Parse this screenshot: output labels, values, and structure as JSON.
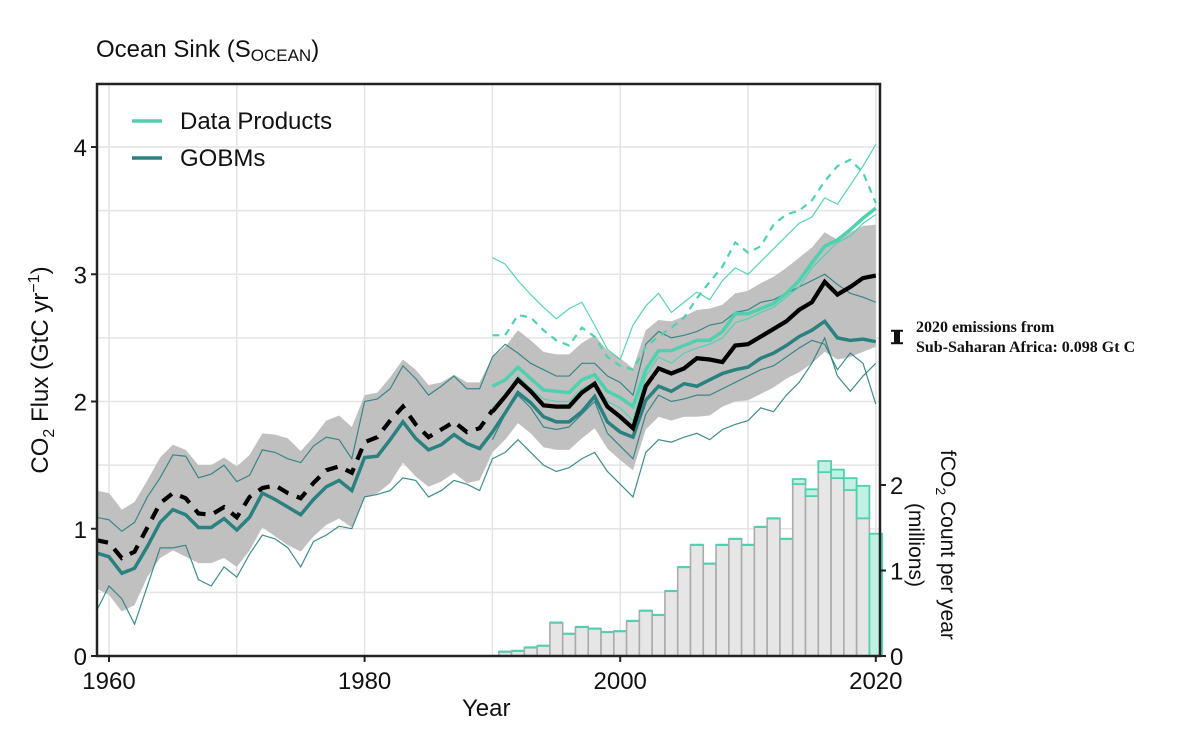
{
  "chart_data": {
    "type": "line",
    "title": "Ocean Sink (S",
    "title_sub": "OCEAN",
    "title_end": ")",
    "xlabel": "Year",
    "ylabel": "CO",
    "ylabel_sub": "2",
    "ylabel_rest": " Flux (GtC  yr",
    "ylabel_sup": "−1",
    "ylabel_end": ")",
    "y2label_line1_pre": "fCO",
    "y2label_line1_sub": "2",
    "y2label_line1_post": " Count per year",
    "y2label_line2": "(millions)",
    "xlim": [
      1959,
      2021
    ],
    "ylim": [
      0,
      4.5
    ],
    "y2lim": [
      0,
      6.7
    ],
    "xticks": [
      1960,
      1980,
      2000,
      2020
    ],
    "yticks": [
      0,
      1,
      2,
      3,
      4
    ],
    "y2ticks": [
      0,
      1,
      2
    ],
    "grid": true,
    "legend": {
      "placement": "top-left",
      "entries": [
        {
          "label": "Data Products",
          "color": "#4fd1b0"
        },
        {
          "label": "GOBMs",
          "color": "#2b8080"
        }
      ]
    },
    "annotation": {
      "line1": "2020 emissions from",
      "line2": "Sub-Saharan Africa: 0.098 Gt C",
      "year": 2020,
      "value_gtc": 0.098
    },
    "colors": {
      "data_products": "#4fd1b0",
      "gobms": "#2b8080",
      "mean": "#000000",
      "band": "#bdbdbd",
      "bar_fill": "#e6e6e6",
      "bar_edge": "#ababab",
      "bar_dp_fill": "#c2f0e2"
    },
    "uncertainty_band": {
      "name": "GOBM spread",
      "x": [
        1959,
        1960,
        1961,
        1962,
        1963,
        1964,
        1965,
        1966,
        1967,
        1968,
        1969,
        1970,
        1971,
        1972,
        1973,
        1974,
        1975,
        1976,
        1977,
        1978,
        1979,
        1980,
        1981,
        1982,
        1983,
        1984,
        1985,
        1986,
        1987,
        1988,
        1989,
        1990,
        1991,
        1992,
        1993,
        1994,
        1995,
        1996,
        1997,
        1998,
        1999,
        2000,
        2001,
        2002,
        2003,
        2004,
        2005,
        2006,
        2007,
        2008,
        2009,
        2010,
        2011,
        2012,
        2013,
        2014,
        2015,
        2016,
        2017,
        2018,
        2019,
        2020
      ],
      "upper": [
        1.3,
        1.28,
        1.15,
        1.21,
        1.38,
        1.56,
        1.66,
        1.62,
        1.5,
        1.5,
        1.56,
        1.49,
        1.58,
        1.75,
        1.74,
        1.71,
        1.61,
        1.72,
        1.85,
        1.89,
        1.8,
        2.05,
        2.07,
        2.19,
        2.33,
        2.25,
        2.13,
        2.15,
        2.21,
        2.15,
        2.15,
        2.35,
        2.43,
        2.56,
        2.48,
        2.39,
        2.37,
        2.37,
        2.46,
        2.52,
        2.4,
        2.34,
        2.26,
        2.56,
        2.64,
        2.63,
        2.67,
        2.72,
        2.73,
        2.76,
        2.85,
        2.87,
        2.93,
        2.98,
        3.05,
        3.13,
        3.21,
        3.33,
        3.27,
        3.33,
        3.38,
        3.39
      ],
      "lower": [
        0.53,
        0.48,
        0.35,
        0.4,
        0.62,
        0.77,
        0.83,
        0.78,
        0.73,
        0.73,
        0.77,
        0.7,
        0.83,
        1.01,
        0.94,
        0.87,
        0.82,
        0.94,
        1.03,
        1.08,
        1.01,
        1.25,
        1.28,
        1.36,
        1.52,
        1.41,
        1.33,
        1.37,
        1.44,
        1.36,
        1.38,
        1.6,
        1.7,
        1.83,
        1.75,
        1.64,
        1.62,
        1.62,
        1.71,
        1.79,
        1.63,
        1.54,
        1.46,
        1.78,
        1.88,
        1.85,
        1.88,
        1.88,
        1.89,
        1.96,
        2.0,
        2.01,
        2.06,
        2.11,
        2.18,
        2.23,
        2.3,
        2.39,
        2.33,
        2.35,
        2.39,
        2.43
      ]
    },
    "series": [
      {
        "name": "GCB estimate (dashed pre-1990)",
        "style": "black-dashed",
        "x": [
          1959,
          1960,
          1961,
          1962,
          1963,
          1964,
          1965,
          1966,
          1967,
          1968,
          1969,
          1970,
          1971,
          1972,
          1973,
          1974,
          1975,
          1976,
          1977,
          1978,
          1979,
          1980,
          1981,
          1982,
          1983,
          1984,
          1985,
          1986,
          1987,
          1988,
          1989,
          1990
        ],
        "values": [
          0.91,
          0.89,
          0.77,
          0.82,
          1.01,
          1.2,
          1.28,
          1.24,
          1.12,
          1.11,
          1.17,
          1.09,
          1.25,
          1.32,
          1.34,
          1.28,
          1.24,
          1.36,
          1.46,
          1.49,
          1.44,
          1.68,
          1.72,
          1.85,
          1.96,
          1.82,
          1.72,
          1.78,
          1.84,
          1.76,
          1.79,
          1.93
        ]
      },
      {
        "name": "GCB estimate (solid 1990-2020)",
        "style": "black-solid",
        "x": [
          1990,
          1991,
          1992,
          1993,
          1994,
          1995,
          1996,
          1997,
          1998,
          1999,
          2000,
          2001,
          2002,
          2003,
          2004,
          2005,
          2006,
          2007,
          2008,
          2009,
          2010,
          2011,
          2012,
          2013,
          2014,
          2015,
          2016,
          2017,
          2018,
          2019,
          2020
        ],
        "values": [
          1.92,
          2.04,
          2.17,
          2.08,
          1.97,
          1.96,
          1.96,
          2.07,
          2.14,
          1.96,
          1.88,
          1.79,
          2.12,
          2.26,
          2.22,
          2.26,
          2.34,
          2.33,
          2.31,
          2.44,
          2.45,
          2.51,
          2.57,
          2.63,
          2.72,
          2.78,
          2.94,
          2.84,
          2.9,
          2.97,
          2.99
        ]
      },
      {
        "name": "GOBMs mean",
        "style": "gobm-thick",
        "x": [
          1959,
          1960,
          1961,
          1962,
          1963,
          1964,
          1965,
          1966,
          1967,
          1968,
          1969,
          1970,
          1971,
          1972,
          1973,
          1974,
          1975,
          1976,
          1977,
          1978,
          1979,
          1980,
          1981,
          1982,
          1983,
          1984,
          1985,
          1986,
          1987,
          1988,
          1989,
          1990,
          1991,
          1992,
          1993,
          1994,
          1995,
          1996,
          1997,
          1998,
          1999,
          2000,
          2001,
          2002,
          2003,
          2004,
          2005,
          2006,
          2007,
          2008,
          2009,
          2010,
          2011,
          2012,
          2013,
          2014,
          2015,
          2016,
          2017,
          2018,
          2019,
          2020
        ],
        "values": [
          0.81,
          0.78,
          0.65,
          0.69,
          0.86,
          1.05,
          1.15,
          1.11,
          1.01,
          1.01,
          1.08,
          0.99,
          1.09,
          1.28,
          1.23,
          1.17,
          1.11,
          1.23,
          1.33,
          1.38,
          1.3,
          1.56,
          1.57,
          1.7,
          1.84,
          1.71,
          1.62,
          1.66,
          1.74,
          1.67,
          1.63,
          1.76,
          1.91,
          2.07,
          1.99,
          1.88,
          1.84,
          1.84,
          1.92,
          2.04,
          1.84,
          1.76,
          1.72,
          2.01,
          2.12,
          2.08,
          2.14,
          2.12,
          2.17,
          2.22,
          2.25,
          2.27,
          2.34,
          2.38,
          2.44,
          2.51,
          2.56,
          2.63,
          2.5,
          2.48,
          2.49,
          2.47
        ]
      },
      {
        "name": "Data Products mean",
        "style": "dp-thick",
        "x": [
          1990,
          1991,
          1992,
          1993,
          1994,
          1995,
          1996,
          1997,
          1998,
          1999,
          2000,
          2001,
          2002,
          2003,
          2004,
          2005,
          2006,
          2007,
          2008,
          2009,
          2010,
          2011,
          2012,
          2013,
          2014,
          2015,
          2016,
          2017,
          2018,
          2019,
          2020
        ],
        "values": [
          2.12,
          2.17,
          2.27,
          2.18,
          2.09,
          2.08,
          2.07,
          2.17,
          2.21,
          2.08,
          2.03,
          1.96,
          2.25,
          2.4,
          2.4,
          2.44,
          2.48,
          2.48,
          2.55,
          2.69,
          2.69,
          2.73,
          2.77,
          2.85,
          2.95,
          3.09,
          3.22,
          3.27,
          3.35,
          3.44,
          3.52
        ]
      },
      {
        "name": "Data Product (dashed)",
        "style": "dp-dashed",
        "x": [
          1990,
          1991,
          1992,
          1993,
          1994,
          1995,
          1996,
          1997,
          1998,
          1999,
          2000,
          2001,
          2002,
          2003,
          2004,
          2005,
          2006,
          2007,
          2008,
          2009,
          2010,
          2011,
          2012,
          2013,
          2014,
          2015,
          2016,
          2017,
          2018,
          2019,
          2020
        ],
        "values": [
          2.52,
          2.52,
          2.68,
          2.66,
          2.56,
          2.48,
          2.44,
          2.58,
          2.51,
          2.35,
          2.28,
          2.25,
          2.43,
          2.51,
          2.58,
          2.66,
          2.81,
          2.94,
          3.06,
          3.25,
          3.17,
          3.22,
          3.39,
          3.47,
          3.5,
          3.58,
          3.73,
          3.85,
          3.9,
          3.8,
          3.56
        ]
      },
      {
        "name": "Data Product member A",
        "style": "dp-thin",
        "x": [
          1990,
          1991,
          1992,
          1993,
          1994,
          1995,
          1996,
          1997,
          1998,
          1999,
          2000,
          2001,
          2002,
          2003,
          2004,
          2005,
          2006,
          2007,
          2008,
          2009,
          2010,
          2011,
          2012,
          2013,
          2014,
          2015,
          2016,
          2017,
          2018,
          2019,
          2020
        ],
        "values": [
          3.13,
          3.08,
          2.95,
          2.84,
          2.74,
          2.65,
          2.73,
          2.78,
          2.6,
          2.41,
          2.33,
          2.6,
          2.75,
          2.85,
          2.7,
          2.78,
          2.86,
          2.8,
          2.95,
          3.05,
          3.0,
          3.1,
          3.2,
          3.3,
          3.4,
          3.45,
          3.6,
          3.55,
          3.7,
          3.85,
          4.02
        ]
      },
      {
        "name": "Data Product member B",
        "style": "dp-thin",
        "x": [
          1990,
          1991,
          1992,
          1993,
          1994,
          1995,
          1996,
          1997,
          1998,
          1999,
          2000,
          2001,
          2002,
          2003,
          2004,
          2005,
          2006,
          2007,
          2008,
          2009,
          2010,
          2011,
          2012,
          2013,
          2014,
          2015,
          2016,
          2017,
          2018,
          2019,
          2020
        ],
        "values": [
          1.95,
          2.05,
          2.2,
          2.1,
          2.02,
          2.0,
          2.0,
          2.1,
          2.15,
          2.0,
          1.95,
          1.85,
          2.2,
          2.35,
          2.3,
          2.38,
          2.42,
          2.45,
          2.5,
          2.62,
          2.65,
          2.7,
          2.74,
          2.82,
          2.9,
          3.05,
          3.15,
          3.25,
          3.3,
          3.4,
          3.47
        ]
      },
      {
        "name": "GOBM member A",
        "style": "gobm-thin",
        "x": [
          1959,
          1960,
          1961,
          1962,
          1963,
          1964,
          1965,
          1966,
          1967,
          1968,
          1969,
          1970,
          1971,
          1972,
          1973,
          1974,
          1975,
          1976,
          1977,
          1978,
          1979,
          1980,
          1981,
          1982,
          1983,
          1984,
          1985,
          1986,
          1987,
          1988,
          1989,
          1990,
          1991,
          1992,
          1993,
          1994,
          1995,
          1996,
          1997,
          1998,
          1999,
          2000,
          2001,
          2002,
          2003,
          2004,
          2005,
          2006,
          2007,
          2008,
          2009,
          2010,
          2011,
          2012,
          2013,
          2014,
          2015,
          2016,
          2017,
          2018,
          2019,
          2020
        ],
        "values": [
          1.09,
          1.07,
          0.98,
          1.05,
          1.25,
          1.4,
          1.58,
          1.57,
          1.4,
          1.43,
          1.5,
          1.37,
          1.42,
          1.62,
          1.6,
          1.55,
          1.52,
          1.65,
          1.72,
          1.7,
          1.55,
          2.0,
          2.02,
          2.1,
          2.28,
          2.18,
          2.05,
          2.12,
          2.2,
          2.1,
          2.1,
          2.35,
          2.45,
          2.38,
          2.3,
          2.25,
          2.2,
          2.2,
          2.3,
          2.3,
          2.2,
          2.15,
          2.05,
          2.45,
          2.55,
          2.5,
          2.52,
          2.55,
          2.6,
          2.62,
          2.7,
          2.72,
          2.78,
          2.8,
          2.85,
          2.9,
          2.95,
          3.0,
          2.92,
          2.85,
          2.82,
          2.78
        ]
      },
      {
        "name": "GOBM member B",
        "style": "gobm-thin",
        "x": [
          1959,
          1960,
          1961,
          1962,
          1963,
          1964,
          1965,
          1966,
          1967,
          1968,
          1969,
          1970,
          1971,
          1972,
          1973,
          1974,
          1975,
          1976,
          1977,
          1978,
          1979,
          1980,
          1981,
          1982,
          1983,
          1984,
          1985,
          1986,
          1987,
          1988,
          1989,
          1990,
          1991,
          1992,
          1993,
          1994,
          1995,
          1996,
          1997,
          1998,
          1999,
          2000,
          2001,
          2002,
          2003,
          2004,
          2005,
          2006,
          2007,
          2008,
          2009,
          2010,
          2011,
          2012,
          2013,
          2014,
          2015,
          2016,
          2017,
          2018,
          2019,
          2020
        ],
        "values": [
          0.35,
          0.55,
          0.45,
          0.25,
          0.55,
          0.85,
          0.85,
          0.87,
          0.6,
          0.55,
          0.7,
          0.62,
          0.8,
          0.95,
          0.92,
          0.85,
          0.7,
          0.9,
          0.95,
          1.02,
          1.0,
          1.25,
          1.27,
          1.3,
          1.4,
          1.38,
          1.25,
          1.3,
          1.38,
          1.35,
          1.3,
          1.55,
          1.6,
          1.7,
          1.6,
          1.5,
          1.45,
          1.48,
          1.55,
          1.6,
          1.45,
          1.35,
          1.25,
          1.6,
          1.7,
          1.68,
          1.72,
          1.75,
          1.7,
          1.78,
          1.82,
          1.85,
          1.95,
          1.92,
          2.05,
          2.15,
          2.3,
          2.5,
          2.2,
          2.08,
          2.2,
          2.3
        ]
      },
      {
        "name": "GOBM member C",
        "style": "gobm-thin",
        "x": [
          1990,
          1991,
          1992,
          1993,
          1994,
          1995,
          1996,
          1997,
          1998,
          1999,
          2000,
          2001,
          2002,
          2003,
          2004,
          2005,
          2006,
          2007,
          2008,
          2009,
          2010,
          2011,
          2012,
          2013,
          2014,
          2015,
          2016,
          2017,
          2018,
          2019,
          2020
        ],
        "values": [
          1.7,
          1.9,
          2.05,
          1.95,
          1.8,
          1.78,
          1.8,
          1.9,
          2.0,
          1.75,
          1.65,
          1.55,
          1.9,
          2.05,
          2.0,
          2.02,
          2.05,
          2.05,
          2.1,
          2.15,
          2.2,
          2.25,
          2.28,
          2.35,
          2.42,
          2.48,
          2.45,
          2.25,
          2.38,
          2.3,
          1.98
        ]
      }
    ],
    "bars": {
      "name": "fCO2 Count per year (millions)",
      "axis": "secondary",
      "x": [
        1991,
        1992,
        1993,
        1994,
        1995,
        1996,
        1997,
        1998,
        1999,
        2000,
        2001,
        2002,
        2003,
        2004,
        2005,
        2006,
        2007,
        2008,
        2009,
        2010,
        2011,
        2012,
        2013,
        2014,
        2015,
        2016,
        2017,
        2018,
        2019,
        2020
      ],
      "total": [
        0.05,
        0.06,
        0.1,
        0.12,
        0.39,
        0.26,
        0.34,
        0.32,
        0.28,
        0.29,
        0.41,
        0.53,
        0.48,
        0.76,
        1.04,
        1.3,
        1.08,
        1.3,
        1.37,
        1.3,
        1.51,
        1.61,
        1.37,
        2.07,
        1.95,
        2.28,
        2.18,
        2.08,
        1.99,
        1.43
      ],
      "gray_part": [
        0.05,
        0.06,
        0.1,
        0.12,
        0.39,
        0.26,
        0.34,
        0.32,
        0.28,
        0.29,
        0.41,
        0.53,
        0.48,
        0.76,
        1.04,
        1.3,
        1.08,
        1.3,
        1.37,
        1.3,
        1.51,
        1.61,
        1.37,
        2.01,
        1.87,
        2.15,
        2.08,
        1.94,
        1.61,
        0.0
      ]
    }
  }
}
